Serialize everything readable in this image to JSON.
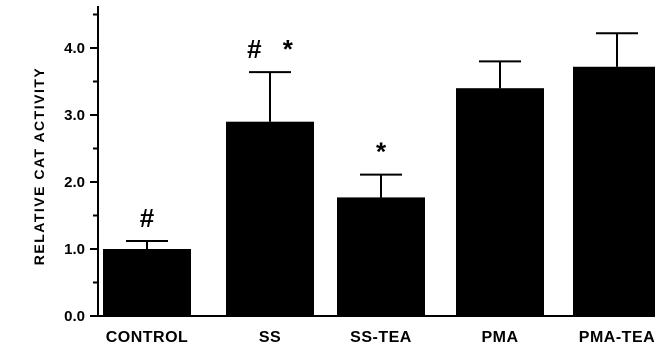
{
  "chart_data": {
    "type": "bar",
    "categories": [
      "CONTROL",
      "SS",
      "SS-TEA",
      "PMA",
      "PMA-TEA"
    ],
    "values": [
      1.0,
      2.9,
      1.77,
      3.4,
      3.72
    ],
    "errors": [
      0.12,
      0.74,
      0.34,
      0.4,
      0.5
    ],
    "annotations": [
      "#",
      "# *",
      "*",
      "",
      ""
    ],
    "ylabel": "RELATIVE CAT ACTIVITY",
    "xlabel": "",
    "ylim": [
      0,
      4.6
    ],
    "yticks": [
      "0.0",
      "1.0",
      "2.0",
      "3.0",
      "4.0"
    ],
    "bar_color": "#000000",
    "grid": false
  }
}
